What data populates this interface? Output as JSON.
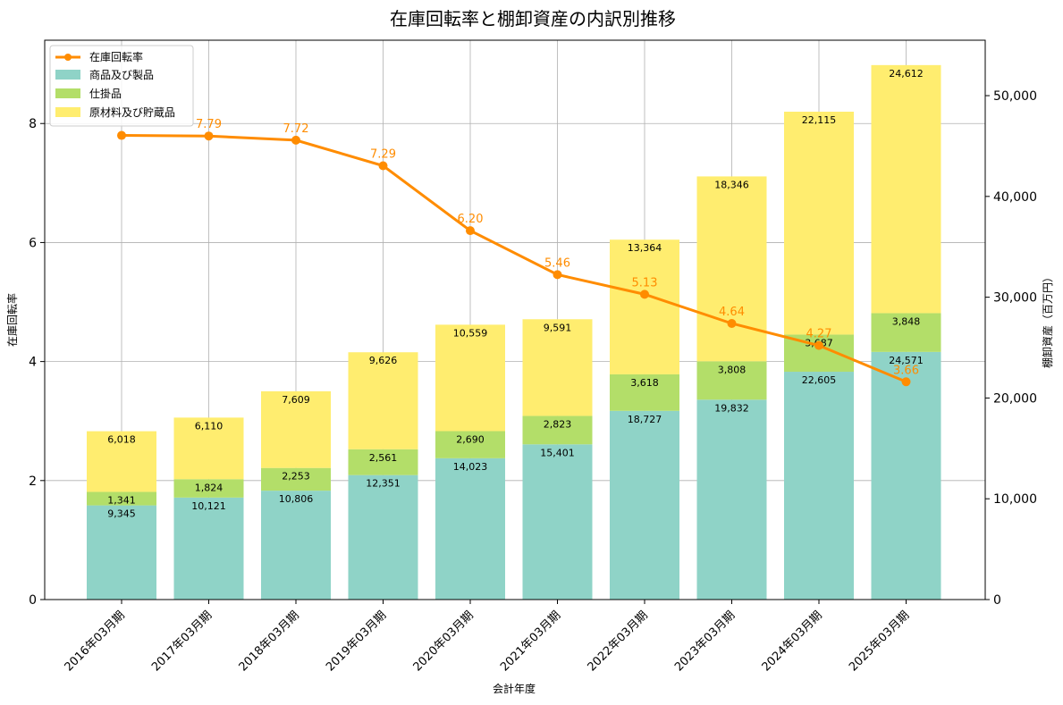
{
  "chart_data": {
    "type": "bar",
    "title": "在庫回転率と棚卸資産の内訳別推移",
    "xlabel": "会計年度",
    "ylabel_left": "在庫回転率",
    "ylabel_right": "棚卸資産（百万円）",
    "categories": [
      "2016年03月期",
      "2017年03月期",
      "2018年03月期",
      "2019年03月期",
      "2020年03月期",
      "2021年03月期",
      "2022年03月期",
      "2023年03月期",
      "2024年03月期",
      "2025年03月期"
    ],
    "bar_series": [
      {
        "name": "商品及び製品",
        "values": [
          9345,
          10121,
          10806,
          12351,
          14023,
          15401,
          18727,
          19832,
          22605,
          24571
        ],
        "labels": [
          "9,345",
          "10,121",
          "10,806",
          "12,351",
          "14,023",
          "15,401",
          "18,727",
          "19,832",
          "22,605",
          "24,571"
        ],
        "color": "#8fd3c7"
      },
      {
        "name": "仕掛品",
        "values": [
          1341,
          1824,
          2253,
          2561,
          2690,
          2823,
          3618,
          3808,
          3687,
          3848
        ],
        "labels": [
          "1,341",
          "1,824",
          "2,253",
          "2,561",
          "2,690",
          "2,823",
          "3,618",
          "3,808",
          "3,687",
          "3,848"
        ],
        "color": "#b3de69"
      },
      {
        "name": "原材料及び貯蔵品",
        "values": [
          6018,
          6110,
          7609,
          9626,
          10559,
          9591,
          13364,
          18346,
          22115,
          24612
        ],
        "labels": [
          "6,018",
          "6,110",
          "7,609",
          "9,626",
          "10,559",
          "9,591",
          "13,364",
          "18,346",
          "22,115",
          "24,612"
        ],
        "color": "#ffed6f"
      }
    ],
    "line_series": {
      "name": "在庫回転率",
      "values": [
        7.8,
        7.79,
        7.72,
        7.29,
        6.2,
        5.46,
        5.13,
        4.64,
        4.27,
        3.66
      ],
      "labels": [
        "",
        "7.79",
        "7.72",
        "7.29",
        "6.20",
        "5.46",
        "5.13",
        "4.64",
        "4.27",
        "3.66"
      ],
      "color": "#ff8c00"
    },
    "ylim_left": [
      0,
      9.4
    ],
    "ylim_right": [
      0,
      55500
    ],
    "yticks_left": [
      0,
      2,
      4,
      6,
      8
    ],
    "yticks_left_labels": [
      "0",
      "2",
      "4",
      "6",
      "8"
    ],
    "yticks_right": [
      0,
      10000,
      20000,
      30000,
      40000,
      50000
    ],
    "yticks_right_labels": [
      "0",
      "10,000",
      "20,000",
      "30,000",
      "40,000",
      "50,000"
    ],
    "grid": true,
    "legend_position": "top-left"
  }
}
